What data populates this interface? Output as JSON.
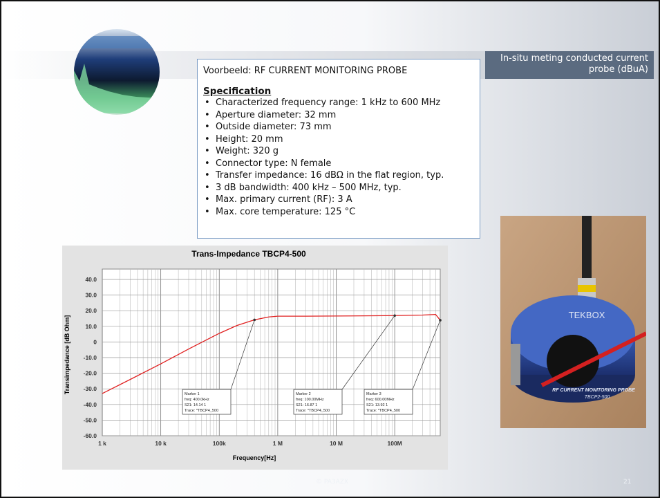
{
  "header": {
    "caption": "In-situ meting  conducted current probe (dBuA)"
  },
  "spec_box": {
    "title": "Voorbeeld: RF CURRENT MONITORING PROBE",
    "heading": "Specification",
    "items": [
      "Characterized frequency range: 1 kHz to 600 MHz",
      "Aperture diameter: 32 mm",
      "Outside diameter: 73 mm",
      "Height: 20 mm",
      "Weight: 320 g",
      "Connector type: N female",
      "Transfer impedance: 16 dBΩ in the flat region, typ.",
      "3 dB bandwidth: 400 kHz – 500 MHz, typ.",
      "Max. primary current (RF): 3 A",
      "Max. core temperature: 125 °C"
    ]
  },
  "chart_data": {
    "type": "line",
    "title": "Trans-Impedance  TBCP4-500",
    "x_label": "Frequency[Hz]",
    "y_label": "Transimpedance [dB Ohm]",
    "x": [
      1000,
      3000,
      10000,
      30000,
      100000,
      200000,
      400000,
      700000,
      1000000,
      3000000,
      10000000,
      30000000,
      100000000,
      300000000,
      500000000,
      600000000
    ],
    "values": [
      -33,
      -24,
      -14,
      -4.5,
      5.5,
      10.5,
      14.14,
      16,
      16.5,
      16.5,
      16.6,
      16.7,
      16.87,
      17.2,
      17.6,
      13.92
    ],
    "color": "#e02020",
    "log_x": true,
    "grid": true,
    "xlim": [
      1000,
      600000000
    ],
    "xticks": [
      {
        "value": 1000,
        "label": "1 k"
      },
      {
        "value": 10000,
        "label": "10 k"
      },
      {
        "value": 100000,
        "label": "100k"
      },
      {
        "value": 1000000,
        "label": "1 M"
      },
      {
        "value": 10000000,
        "label": "10 M"
      },
      {
        "value": 100000000,
        "label": "100M"
      }
    ],
    "ylim": [
      -60,
      40
    ],
    "yticks": [
      {
        "value": 40,
        "label": "40.0"
      },
      {
        "value": 30,
        "label": "30.0"
      },
      {
        "value": 20,
        "label": "20.0"
      },
      {
        "value": 10,
        "label": "10.0"
      },
      0,
      {
        "value": -10,
        "label": "-10.0"
      },
      {
        "value": -20,
        "label": "-20.0"
      },
      {
        "value": -30,
        "label": "-30.0"
      },
      {
        "value": -40,
        "label": "-40.0"
      },
      {
        "value": -50,
        "label": "-50.0"
      },
      {
        "value": -60,
        "label": "-60.0"
      }
    ],
    "annotations": [
      {
        "x": 400000,
        "y": 14.14,
        "lines": [
          "Marker 1",
          "freq: 400.0kHz",
          "S21: 14.14 1",
          "Trace: *TBCP4_500"
        ]
      },
      {
        "x": 100000000,
        "y": 16.87,
        "lines": [
          "Marker 2",
          "freq: 100.00MHz",
          "S21: 16.87 1",
          "Trace: *TBCP4_500"
        ]
      },
      {
        "x": 600000000,
        "y": 13.92,
        "lines": [
          "Marker 3",
          "freq: 600.00MHz",
          "S21: 13.92 1",
          "Trace: *TBCP4_500"
        ]
      }
    ]
  },
  "photo": {
    "brand": "TEKBOX",
    "label": "RF CURRENT MONITORING PROBE",
    "model": "TBCP2-500"
  },
  "footer": {
    "copyright": "© PA3AZX",
    "page": "21"
  }
}
